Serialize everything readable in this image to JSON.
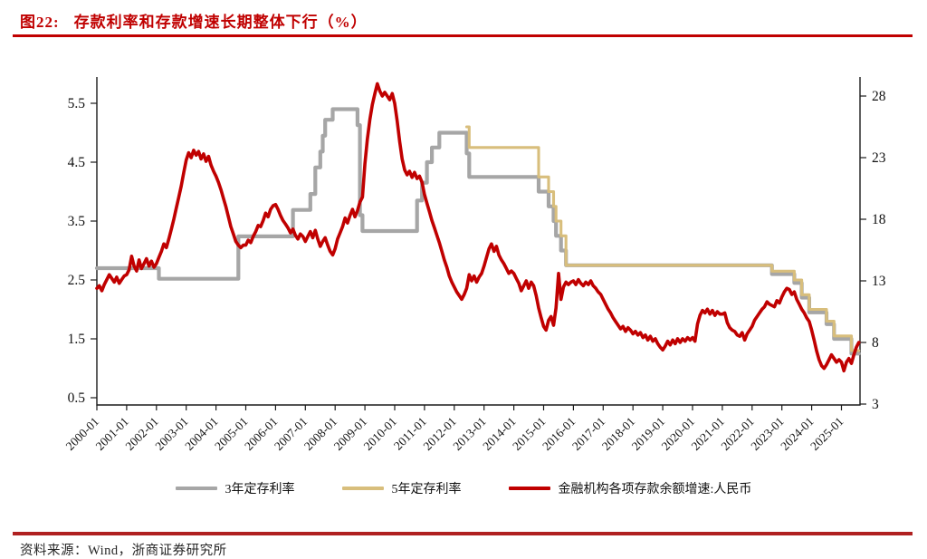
{
  "title": {
    "prefix": "图22:",
    "text": "存款利率和存款增速长期整体下行（%）"
  },
  "source": "资料来源：Wind，浙商证券研究所",
  "colors": {
    "gray": "#A6A6A6",
    "yellow": "#D8BE7C",
    "red": "#C00000",
    "title": "#C00000",
    "rule_top": "#C00000",
    "rule_bottom": "#B02121",
    "axis": "#1a1a1a"
  },
  "chart_data": {
    "type": "line",
    "title": "存款利率和存款增速长期整体下行（%）",
    "grid": false,
    "legend_position": "bottom",
    "left_axis": {
      "ticks": [
        "0.5",
        "1.5",
        "2.5",
        "3.5",
        "4.5",
        "5.5"
      ],
      "range": [
        0.5,
        5.5
      ],
      "unit": "%"
    },
    "right_axis": {
      "ticks": [
        "3",
        "8",
        "13",
        "18",
        "23",
        "28"
      ],
      "range": [
        3,
        28
      ],
      "unit": "%"
    },
    "x_axis": {
      "start": "2000-01",
      "end": "2025-08",
      "labels": [
        "2000-01",
        "2001-01",
        "2002-01",
        "2003-01",
        "2004-01",
        "2005-01",
        "2006-01",
        "2007-01",
        "2008-01",
        "2009-01",
        "2010-01",
        "2011-01",
        "2012-01",
        "2013-01",
        "2014-01",
        "2015-01",
        "2016-01",
        "2017-01",
        "2018-01",
        "2019-01",
        "2020-01",
        "2021-01",
        "2022-01",
        "2023-01",
        "2024-01",
        "2025-01"
      ]
    },
    "series": [
      {
        "name": "3年定存利率",
        "color_key": "gray",
        "axis": "left",
        "type": "step",
        "end": "2025-08",
        "points": [
          [
            "2000-01",
            2.7
          ],
          [
            "2002-02",
            2.52
          ],
          [
            "2004-10",
            3.24
          ],
          [
            "2006-08",
            3.69
          ],
          [
            "2007-03",
            3.96
          ],
          [
            "2007-05",
            4.41
          ],
          [
            "2007-07",
            4.68
          ],
          [
            "2007-08",
            4.95
          ],
          [
            "2007-09",
            5.22
          ],
          [
            "2007-12",
            5.4
          ],
          [
            "2008-10",
            5.13
          ],
          [
            "2008-11",
            3.6
          ],
          [
            "2008-12",
            3.33
          ],
          [
            "2010-10",
            3.85
          ],
          [
            "2010-12",
            4.15
          ],
          [
            "2011-02",
            4.5
          ],
          [
            "2011-04",
            4.75
          ],
          [
            "2011-07",
            5.0
          ],
          [
            "2012-06",
            4.65
          ],
          [
            "2012-07",
            4.25
          ],
          [
            "2014-11",
            4.0
          ],
          [
            "2015-03",
            3.75
          ],
          [
            "2015-05",
            3.5
          ],
          [
            "2015-06",
            3.25
          ],
          [
            "2015-08",
            3.0
          ],
          [
            "2015-10",
            2.75
          ],
          [
            "2022-09",
            2.6
          ],
          [
            "2023-06",
            2.45
          ],
          [
            "2023-09",
            2.2
          ],
          [
            "2023-12",
            1.95
          ],
          [
            "2024-07",
            1.75
          ],
          [
            "2024-10",
            1.5
          ],
          [
            "2025-05",
            1.25
          ]
        ]
      },
      {
        "name": "5年定存利率",
        "color_key": "yellow",
        "axis": "left",
        "type": "step",
        "end": "2025-08",
        "points": [
          [
            "2012-06",
            5.1
          ],
          [
            "2012-07",
            4.75
          ],
          [
            "2014-11",
            4.25
          ],
          [
            "2015-03",
            4.0
          ],
          [
            "2015-05",
            3.75
          ],
          [
            "2015-06",
            3.5
          ],
          [
            "2015-08",
            3.25
          ],
          [
            "2015-10",
            2.75
          ],
          [
            "2022-09",
            2.65
          ],
          [
            "2023-06",
            2.5
          ],
          [
            "2023-09",
            2.25
          ],
          [
            "2023-12",
            2.0
          ],
          [
            "2024-07",
            1.8
          ],
          [
            "2024-10",
            1.55
          ],
          [
            "2025-05",
            1.3
          ]
        ]
      },
      {
        "name": "金融机构各项存款余额增速:人民币",
        "color_key": "red",
        "axis": "right",
        "type": "line",
        "start": "2000-01",
        "monthly": {
          "2000": [
            12.4,
            12.6,
            12.2,
            12.7,
            13.1,
            13.5,
            13.2,
            12.9,
            13.3,
            12.8,
            13.1,
            13.4
          ],
          "2001": [
            13.5,
            13.9,
            15.0,
            14.2,
            13.8,
            14.7,
            14.0,
            14.4,
            14.8,
            14.2,
            14.6,
            14.1
          ],
          "2002": [
            14.4,
            14.9,
            15.4,
            16.0,
            15.7,
            16.4,
            17.2,
            18.0,
            18.9,
            19.8,
            20.7,
            21.8
          ],
          "2003": [
            22.8,
            23.4,
            23.0,
            23.6,
            23.2,
            23.5,
            22.9,
            23.3,
            22.7,
            23.1,
            22.4,
            21.9
          ],
          "2004": [
            21.5,
            21.0,
            20.4,
            19.7,
            19.0,
            18.2,
            17.4,
            16.8,
            16.2,
            15.9,
            15.7,
            15.9
          ],
          "2005": [
            15.9,
            16.3,
            16.1,
            16.6,
            17.0,
            17.5,
            17.4,
            17.9,
            18.5,
            18.2,
            18.8,
            19.1
          ],
          "2006": [
            19.2,
            18.8,
            18.3,
            17.9,
            17.6,
            17.3,
            16.9,
            17.2,
            16.7,
            16.4,
            16.8,
            16.6
          ],
          "2007": [
            16.2,
            16.6,
            17.0,
            16.5,
            17.1,
            16.4,
            15.8,
            16.2,
            16.5,
            15.9,
            15.4,
            15.1
          ],
          "2008": [
            15.6,
            16.4,
            16.9,
            17.4,
            18.1,
            17.7,
            18.3,
            18.8,
            18.2,
            18.7,
            19.4,
            19.8
          ],
          "2009": [
            22.5,
            24.5,
            26.1,
            27.3,
            28.2,
            29.0,
            28.4,
            28.0,
            28.3,
            28.0,
            27.7,
            28.2
          ],
          "2010": [
            27.4,
            26.0,
            24.3,
            22.9,
            22.0,
            21.6,
            21.9,
            21.4,
            21.8,
            21.3,
            21.5,
            21.0
          ],
          "2011": [
            20.0,
            19.3,
            18.6,
            17.9,
            17.3,
            16.7,
            16.1,
            15.4,
            14.7,
            14.1,
            13.4,
            12.9
          ],
          "2012": [
            12.5,
            12.1,
            11.8,
            11.5,
            11.9,
            12.4,
            13.5,
            13.0,
            13.4,
            12.9,
            13.3,
            13.6
          ],
          "2013": [
            14.2,
            14.9,
            15.6,
            16.0,
            15.4,
            15.8,
            15.1,
            14.7,
            14.4,
            14.0,
            13.6,
            13.8
          ],
          "2014": [
            13.6,
            13.2,
            12.8,
            12.2,
            12.6,
            13.0,
            12.4,
            12.9,
            12.6,
            11.8,
            10.8,
            10.0
          ],
          "2015": [
            9.3,
            9.0,
            9.8,
            10.1,
            9.4,
            10.8,
            13.6,
            11.5,
            12.5,
            12.9,
            12.7,
            12.9
          ],
          "2016": [
            13.0,
            12.7,
            13.1,
            12.8,
            12.6,
            12.9,
            12.7,
            13.0,
            12.6,
            12.4,
            12.1,
            11.9
          ],
          "2017": [
            11.5,
            11.1,
            10.7,
            10.4,
            10.0,
            9.7,
            9.4,
            9.1,
            9.3,
            8.9,
            9.2,
            9.0
          ],
          "2018": [
            8.7,
            8.9,
            8.6,
            8.8,
            8.4,
            8.6,
            8.2,
            8.5,
            8.1,
            8.3,
            7.9,
            7.6
          ],
          "2019": [
            7.4,
            7.7,
            8.1,
            7.8,
            8.2,
            7.9,
            8.3,
            8.0,
            8.3,
            8.1,
            8.4,
            8.2
          ],
          "2020": [
            8.4,
            8.1,
            9.5,
            10.2,
            10.6,
            10.4,
            10.7,
            10.3,
            10.6,
            10.2,
            10.5,
            10.3
          ],
          "2021": [
            10.3,
            10.4,
            9.6,
            9.2,
            9.0,
            8.9,
            8.6,
            8.5,
            8.8,
            8.2,
            8.7,
            9.0
          ],
          "2022": [
            9.3,
            9.8,
            10.1,
            10.4,
            10.7,
            10.9,
            11.3,
            11.1,
            11.0,
            10.9,
            11.4,
            11.2
          ],
          "2023": [
            11.7,
            12.1,
            12.4,
            12.3,
            11.9,
            12.1,
            11.5,
            11.1,
            10.7,
            10.4,
            10.0,
            9.7
          ],
          "2024": [
            9.0,
            8.2,
            7.3,
            6.6,
            6.1,
            5.9,
            6.2,
            6.6,
            7.0,
            6.7,
            6.4,
            6.6
          ],
          "2025": [
            6.4,
            5.7,
            6.4,
            6.7,
            6.3,
            7.0,
            7.6,
            8.0
          ]
        }
      }
    ]
  }
}
